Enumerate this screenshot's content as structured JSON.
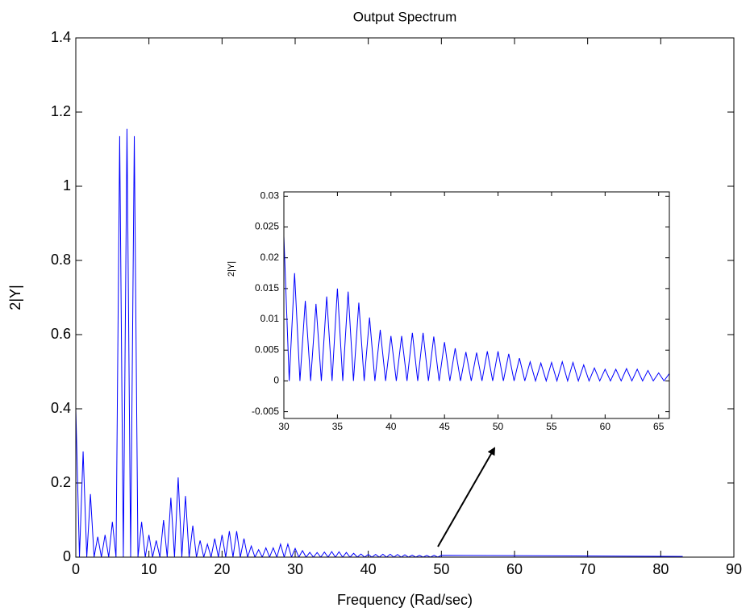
{
  "chart_data": [
    {
      "type": "line",
      "title": "Output Spectrum",
      "xlabel": "Frequency (Rad/sec)",
      "ylabel": "2|Y|",
      "color": "#0000ff",
      "xlim": [
        0,
        90
      ],
      "ylim": [
        0,
        1.4
      ],
      "xticks": [
        0,
        10,
        20,
        30,
        40,
        50,
        60,
        70,
        80,
        90
      ],
      "yticks": [
        0,
        0.2,
        0.4,
        0.6,
        0.8,
        1,
        1.2,
        1.4
      ],
      "x": [
        0,
        0.5,
        1,
        1.5,
        2,
        2.5,
        3,
        3.5,
        4,
        4.5,
        5,
        5.5,
        6,
        6.5,
        7,
        7.5,
        8,
        8.5,
        9,
        9.5,
        10,
        10.5,
        11,
        11.5,
        12,
        12.5,
        13,
        13.5,
        14,
        14.5,
        15,
        15.5,
        16,
        16.5,
        17,
        17.5,
        18,
        18.5,
        19,
        19.5,
        20,
        20.5,
        21,
        21.5,
        22,
        22.5,
        23,
        23.5,
        24,
        24.5,
        25,
        25.5,
        26,
        26.5,
        27,
        27.5,
        28,
        28.5,
        29,
        29.5,
        30,
        30.5,
        31,
        31.5,
        32,
        32.5,
        33,
        33.5,
        34,
        34.5,
        35,
        35.5,
        36,
        36.5,
        37,
        37.5,
        38,
        38.5,
        39,
        39.5,
        40,
        40.5,
        41,
        41.5,
        42,
        42.5,
        43,
        43.5,
        44,
        44.5,
        45,
        45.5,
        46,
        46.5,
        47,
        47.5,
        48,
        48.5,
        49,
        49.5,
        50,
        83
      ],
      "values": [
        0.4,
        0,
        0.285,
        0,
        0.17,
        0,
        0.055,
        0,
        0.06,
        0,
        0.095,
        0,
        1.135,
        0,
        1.155,
        0,
        1.135,
        0,
        0.095,
        0,
        0.06,
        0,
        0.045,
        0,
        0.1,
        0,
        0.16,
        0,
        0.215,
        0,
        0.165,
        0,
        0.085,
        0,
        0.045,
        0,
        0.035,
        0,
        0.05,
        0,
        0.06,
        0,
        0.07,
        0,
        0.07,
        0,
        0.05,
        0,
        0.03,
        0,
        0.02,
        0,
        0.025,
        0,
        0.025,
        0,
        0.035,
        0,
        0.035,
        0,
        0.0235,
        0,
        0.0175,
        0,
        0.013,
        0,
        0.0125,
        0,
        0.0137,
        0,
        0.015,
        0,
        0.0145,
        0,
        0.0127,
        0,
        0.0103,
        0,
        0.0083,
        0,
        0.0073,
        0,
        0.0073,
        0,
        0.0078,
        0,
        0.0078,
        0,
        0.0072,
        0,
        0.0063,
        0,
        0.0053,
        0,
        0.0047,
        0,
        0.0046,
        0,
        0.0048,
        0,
        0.0048,
        0.002
      ]
    },
    {
      "type": "line",
      "ylabel": "2|Y|",
      "color": "#0000ff",
      "xlim": [
        30,
        66
      ],
      "ylim": [
        -0.0061,
        0.0307
      ],
      "xticks": [
        30,
        35,
        40,
        45,
        50,
        55,
        60,
        65
      ],
      "yticks": [
        -0.005,
        0,
        0.005,
        0.01,
        0.015,
        0.02,
        0.025,
        0.03
      ],
      "x": [
        30,
        30.5,
        31,
        31.5,
        32,
        32.5,
        33,
        33.5,
        34,
        34.5,
        35,
        35.5,
        36,
        36.5,
        37,
        37.5,
        38,
        38.5,
        39,
        39.5,
        40,
        40.5,
        41,
        41.5,
        42,
        42.5,
        43,
        43.5,
        44,
        44.5,
        45,
        45.5,
        46,
        46.5,
        47,
        47.5,
        48,
        48.5,
        49,
        49.5,
        50,
        50.5,
        51,
        51.5,
        52,
        52.5,
        53,
        53.5,
        54,
        54.5,
        55,
        55.5,
        56,
        56.5,
        57,
        57.5,
        58,
        58.5,
        59,
        59.5,
        60,
        60.5,
        61,
        61.5,
        62,
        62.5,
        63,
        63.5,
        64,
        64.5,
        65,
        65.5,
        66
      ],
      "values": [
        0.0235,
        0,
        0.0175,
        0,
        0.013,
        0,
        0.0125,
        0,
        0.0137,
        0,
        0.015,
        0,
        0.0145,
        0,
        0.0127,
        0,
        0.0103,
        0,
        0.0083,
        0,
        0.0073,
        0,
        0.0073,
        0,
        0.0078,
        0,
        0.0078,
        0,
        0.0072,
        0,
        0.0063,
        0,
        0.0053,
        0,
        0.0047,
        0,
        0.0046,
        0,
        0.0048,
        0,
        0.0048,
        0,
        0.0044,
        0,
        0.0037,
        0,
        0.0031,
        0,
        0.0029,
        0,
        0.003,
        0,
        0.0031,
        0,
        0.003,
        0,
        0.0026,
        0,
        0.0021,
        0,
        0.0019,
        0,
        0.0019,
        0,
        0.002,
        0,
        0.0019,
        0,
        0.0017,
        0,
        0.0013,
        0,
        0.0012
      ]
    }
  ]
}
